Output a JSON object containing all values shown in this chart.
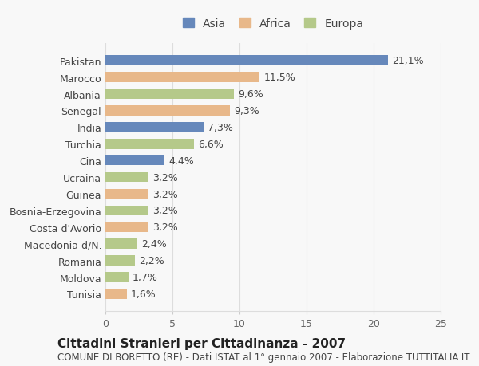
{
  "categories": [
    "Pakistan",
    "Marocco",
    "Albania",
    "Senegal",
    "India",
    "Turchia",
    "Cina",
    "Ucraina",
    "Guinea",
    "Bosnia-Erzegovina",
    "Costa d'Avorio",
    "Macedonia d/N.",
    "Romania",
    "Moldova",
    "Tunisia"
  ],
  "values": [
    21.1,
    11.5,
    9.6,
    9.3,
    7.3,
    6.6,
    4.4,
    3.2,
    3.2,
    3.2,
    3.2,
    2.4,
    2.2,
    1.7,
    1.6
  ],
  "labels": [
    "21,1%",
    "11,5%",
    "9,6%",
    "9,3%",
    "7,3%",
    "6,6%",
    "4,4%",
    "3,2%",
    "3,2%",
    "3,2%",
    "3,2%",
    "2,4%",
    "2,2%",
    "1,7%",
    "1,6%"
  ],
  "continents": [
    "Asia",
    "Africa",
    "Europa",
    "Africa",
    "Asia",
    "Europa",
    "Asia",
    "Europa",
    "Africa",
    "Europa",
    "Africa",
    "Europa",
    "Europa",
    "Europa",
    "Africa"
  ],
  "colors": {
    "Asia": "#6688bb",
    "Africa": "#e8b88a",
    "Europa": "#b5c98a"
  },
  "legend_labels": [
    "Asia",
    "Africa",
    "Europa"
  ],
  "title": "Cittadini Stranieri per Cittadinanza - 2007",
  "subtitle": "COMUNE DI BORETTO (RE) - Dati ISTAT al 1° gennaio 2007 - Elaborazione TUTTITALIA.IT",
  "xlim": [
    0,
    25
  ],
  "xticks": [
    0,
    5,
    10,
    15,
    20,
    25
  ],
  "background_color": "#f8f8f8",
  "grid_color": "#dddddd",
  "bar_height": 0.6,
  "title_fontsize": 11,
  "subtitle_fontsize": 8.5,
  "tick_fontsize": 9,
  "label_fontsize": 9,
  "legend_fontsize": 10
}
